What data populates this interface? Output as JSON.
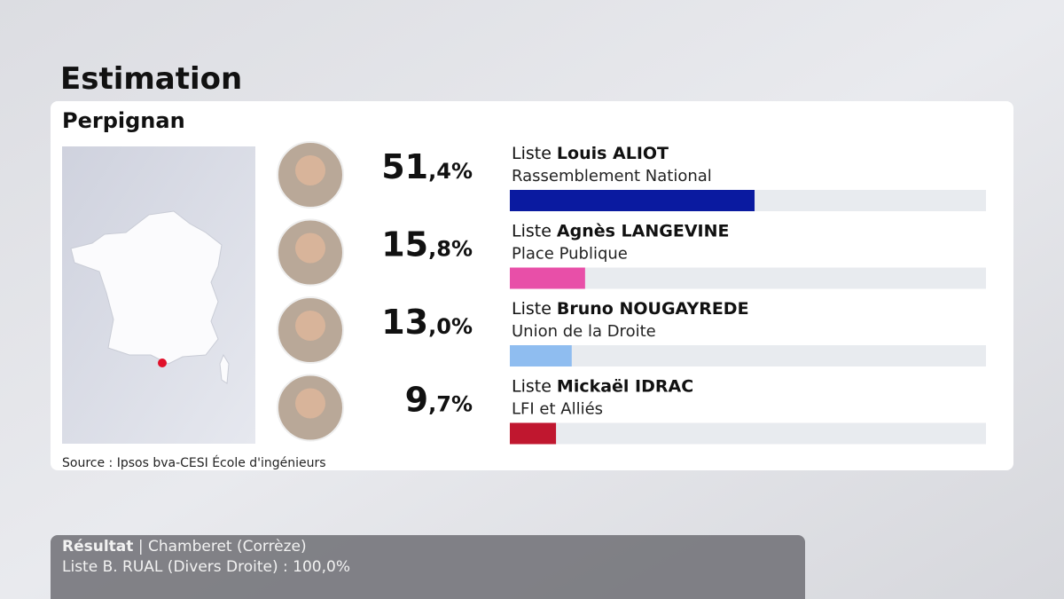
{
  "chart_data": {
    "type": "bar",
    "title": "Estimation",
    "subtitle": "Perpignan",
    "category_prefix": "Liste",
    "categories": [
      "Louis ALIOT",
      "Agnès LANGEVINE",
      "Bruno NOUGAYREDE",
      "Mickaël IDRAC"
    ],
    "parties": [
      "Rassemblement National",
      "Place Publique",
      "Union de la Droite",
      "LFI et Alliés"
    ],
    "values": [
      51.4,
      15.8,
      13.0,
      9.7
    ],
    "value_labels": [
      "51,4%",
      "15,8%",
      "13,0%",
      "9,7%"
    ],
    "colors": [
      "#0a1aa0",
      "#e84fa8",
      "#8fbdf0",
      "#c0172f"
    ],
    "xlim": [
      0,
      100
    ],
    "source": "Source : Ipsos bva-CESI École d'ingénieurs"
  },
  "ticker": {
    "label": "Résultat",
    "separator": "|",
    "place": "Chamberet (Corrèze)",
    "line": "Liste B. RUAL (Divers Droite) : 100,0%"
  }
}
